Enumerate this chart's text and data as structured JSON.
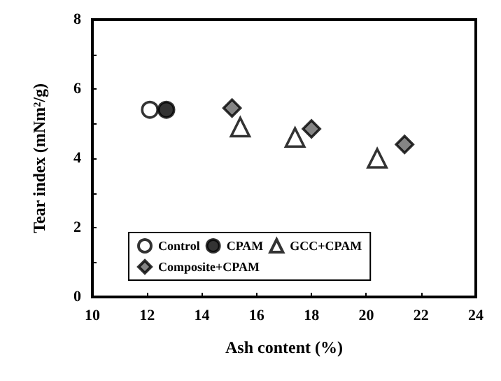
{
  "chart_data": {
    "type": "scatter",
    "xlabel": "Ash content (%)",
    "ylabel": "Tear index (mNm²/g)",
    "xlim": [
      10,
      24
    ],
    "xticks": [
      10,
      12,
      14,
      16,
      18,
      20,
      22,
      24
    ],
    "ylim": [
      0,
      8
    ],
    "yticks": [
      0,
      {
        "value": 1,
        "label": null
      },
      2,
      {
        "value": 3,
        "label": null
      },
      4,
      {
        "value": 5,
        "label": null
      },
      6,
      {
        "value": 7,
        "label": null
      },
      8
    ],
    "grid": false,
    "legend": "bottom",
    "series": [
      {
        "name": "Control",
        "color": "#ffffff",
        "marker": "circle",
        "x": [
          12.1
        ],
        "values": [
          5.4
        ]
      },
      {
        "name": "CPAM",
        "color": "#000000",
        "marker": "circle",
        "x": [
          12.7
        ],
        "values": [
          5.4
        ]
      },
      {
        "name": "GCC+CPAM",
        "color": "#ffffff",
        "marker": "triangle",
        "x": [
          15.4,
          17.4,
          20.4
        ],
        "values": [
          4.9,
          4.6,
          4.0
        ]
      },
      {
        "name": "Composite+CPAM",
        "color": "#666666",
        "marker": "diamond",
        "x": [
          15.1,
          18.0,
          21.4
        ],
        "values": [
          5.45,
          4.85,
          4.4
        ]
      }
    ]
  }
}
